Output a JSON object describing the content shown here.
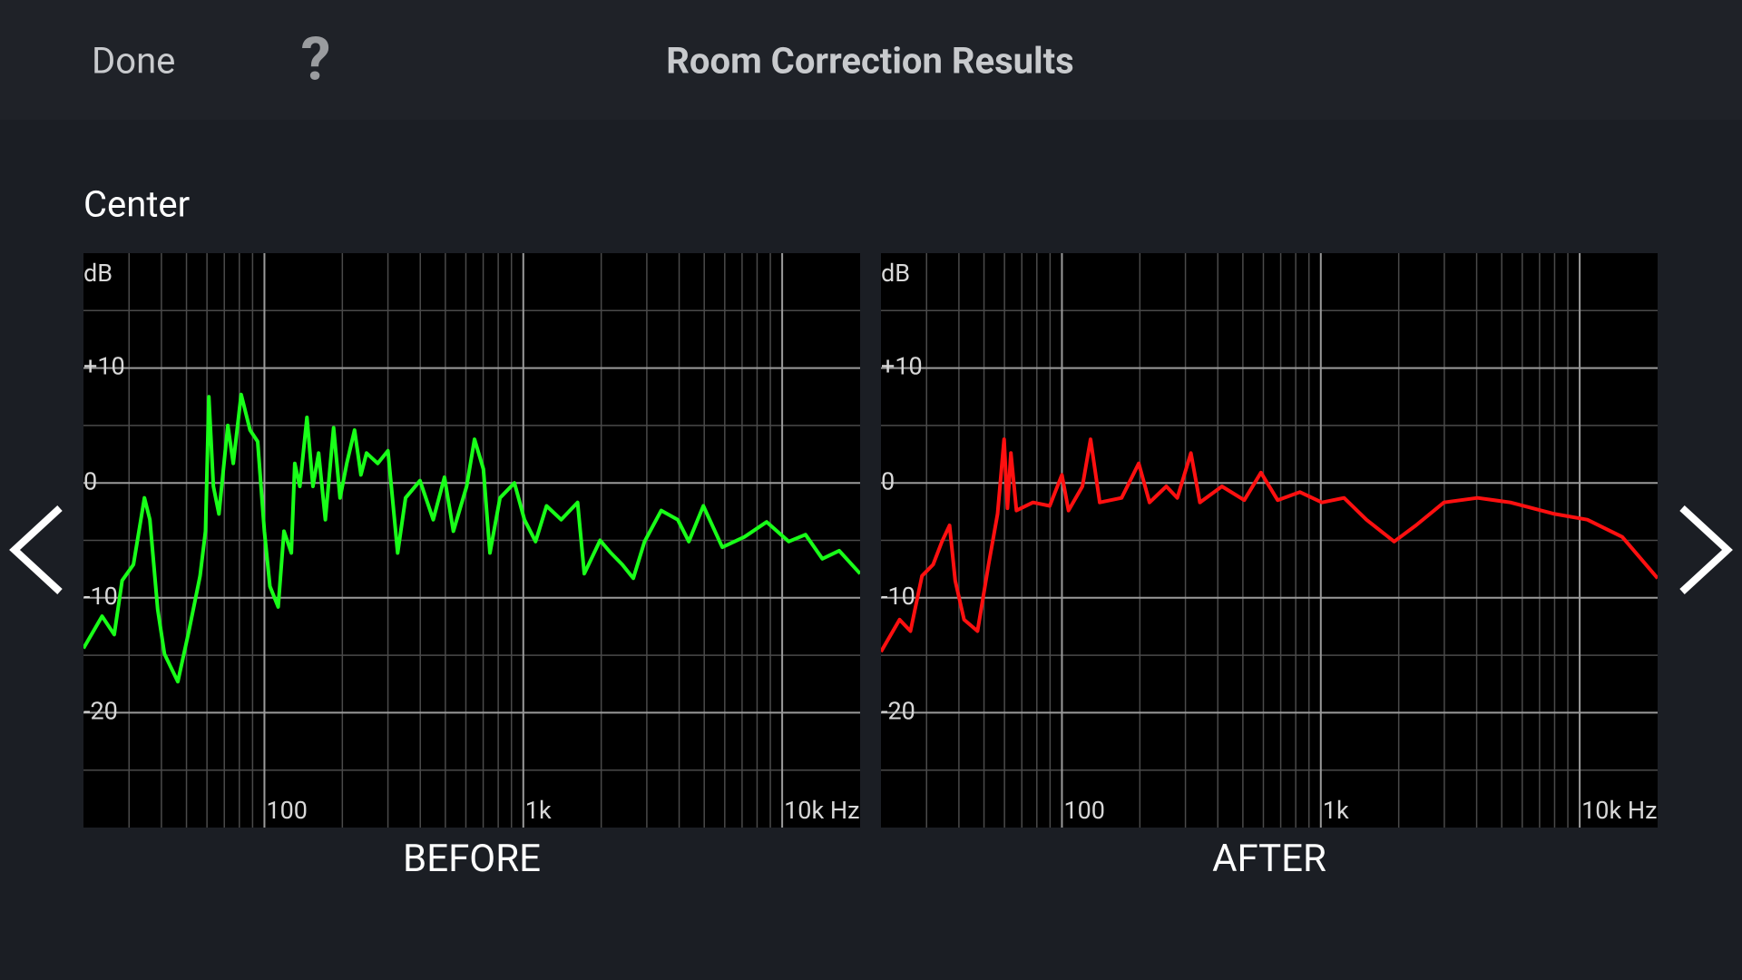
{
  "header": {
    "done": "Done",
    "help": "?",
    "title": "Room Correction Results"
  },
  "channel": "Center",
  "chart_data": [
    {
      "type": "line",
      "title": "BEFORE",
      "y_label": "dB",
      "x_scale": "log",
      "grid": true,
      "color": "#19ff19",
      "xlim": [
        20,
        20000
      ],
      "ylim": [
        -30,
        20
      ],
      "xticks": [
        100,
        {
          "value": 1000,
          "label": "1k"
        },
        {
          "value": 10000,
          "label": "10k Hz"
        }
      ],
      "yticks": [
        -20,
        -10,
        0,
        {
          "value": 10,
          "label": "+10"
        }
      ],
      "x": [
        20,
        23.6,
        26.3,
        28.2,
        31.2,
        34.4,
        36.1,
        38.7,
        41.1,
        46.3,
        51.1,
        56.4,
        59.2,
        61.0,
        63.5,
        66.7,
        72.2,
        75.8,
        81.3,
        88.0,
        94.2,
        100,
        105,
        113,
        119,
        127,
        131,
        137,
        146,
        154,
        162,
        172,
        185,
        196,
        208,
        223,
        236,
        248,
        274,
        300,
        327,
        351,
        399,
        449,
        496,
        537,
        604,
        648,
        701,
        743,
        813,
        924,
        1010,
        1115,
        1230,
        1400,
        1620,
        1720,
        1980,
        2180,
        2410,
        2660,
        2940,
        3410,
        3950,
        4360,
        4960,
        5870,
        7150,
        8710,
        10600,
        12300,
        14300,
        16600,
        20000
      ],
      "values": [
        -14.4,
        -11.6,
        -13.2,
        -8.5,
        -7.1,
        -1.3,
        -3.2,
        -11.0,
        -14.9,
        -17.3,
        -12.9,
        -8.1,
        -4.2,
        7.5,
        -0.3,
        -2.7,
        5.0,
        1.7,
        7.7,
        4.6,
        3.6,
        -4.2,
        -9.0,
        -10.8,
        -4.2,
        -6.1,
        1.7,
        -0.3,
        5.7,
        -0.3,
        2.6,
        -3.2,
        4.8,
        -1.3,
        1.7,
        4.6,
        0.7,
        2.6,
        1.7,
        2.8,
        -6.1,
        -1.3,
        0.2,
        -3.2,
        0.5,
        -4.2,
        -0.3,
        3.8,
        1.2,
        -6.1,
        -1.3,
        0.0,
        -3.2,
        -5.1,
        -2.0,
        -3.2,
        -1.7,
        -7.9,
        -5.0,
        -6.1,
        -7.1,
        -8.3,
        -5.1,
        -2.4,
        -3.2,
        -5.1,
        -2.0,
        -5.6,
        -4.7,
        -3.4,
        -5.1,
        -4.5,
        -6.6,
        -5.9,
        -7.9
      ]
    },
    {
      "type": "line",
      "title": "AFTER",
      "y_label": "dB",
      "x_scale": "log",
      "grid": true,
      "color": "#ff1010",
      "xlim": [
        20,
        20000
      ],
      "ylim": [
        -30,
        20
      ],
      "xticks": [
        100,
        {
          "value": 1000,
          "label": "1k"
        },
        {
          "value": 10000,
          "label": "10k Hz"
        }
      ],
      "yticks": [
        -20,
        -10,
        0,
        {
          "value": 10,
          "label": "+10"
        }
      ],
      "x": [
        20,
        23.6,
        26.0,
        28.8,
        31.8,
        34.4,
        36.8,
        38.7,
        41.9,
        47.2,
        52.1,
        56.4,
        59.8,
        61.6,
        63.5,
        66.7,
        77.3,
        89.7,
        100,
        106,
        120,
        129,
        140,
        170,
        198,
        218,
        253,
        279,
        315,
        341,
        415,
        506,
        587,
        681,
        831,
        1010,
        1230,
        1500,
        1920,
        2330,
        2990,
        4030,
        5400,
        8000,
        10700,
        14600,
        20000
      ],
      "values": [
        -14.7,
        -11.9,
        -12.9,
        -8.1,
        -7.1,
        -5.1,
        -3.7,
        -8.5,
        -11.9,
        -12.9,
        -7.1,
        -2.7,
        3.8,
        -2.2,
        2.6,
        -2.4,
        -1.7,
        -2.0,
        0.7,
        -2.4,
        -0.3,
        3.8,
        -1.7,
        -1.3,
        1.7,
        -1.7,
        -0.3,
        -1.3,
        2.6,
        -1.7,
        -0.3,
        -1.5,
        0.9,
        -1.5,
        -0.8,
        -1.7,
        -1.3,
        -3.2,
        -5.1,
        -3.7,
        -1.7,
        -1.3,
        -1.7,
        -2.7,
        -3.2,
        -4.7,
        -8.3
      ]
    }
  ]
}
